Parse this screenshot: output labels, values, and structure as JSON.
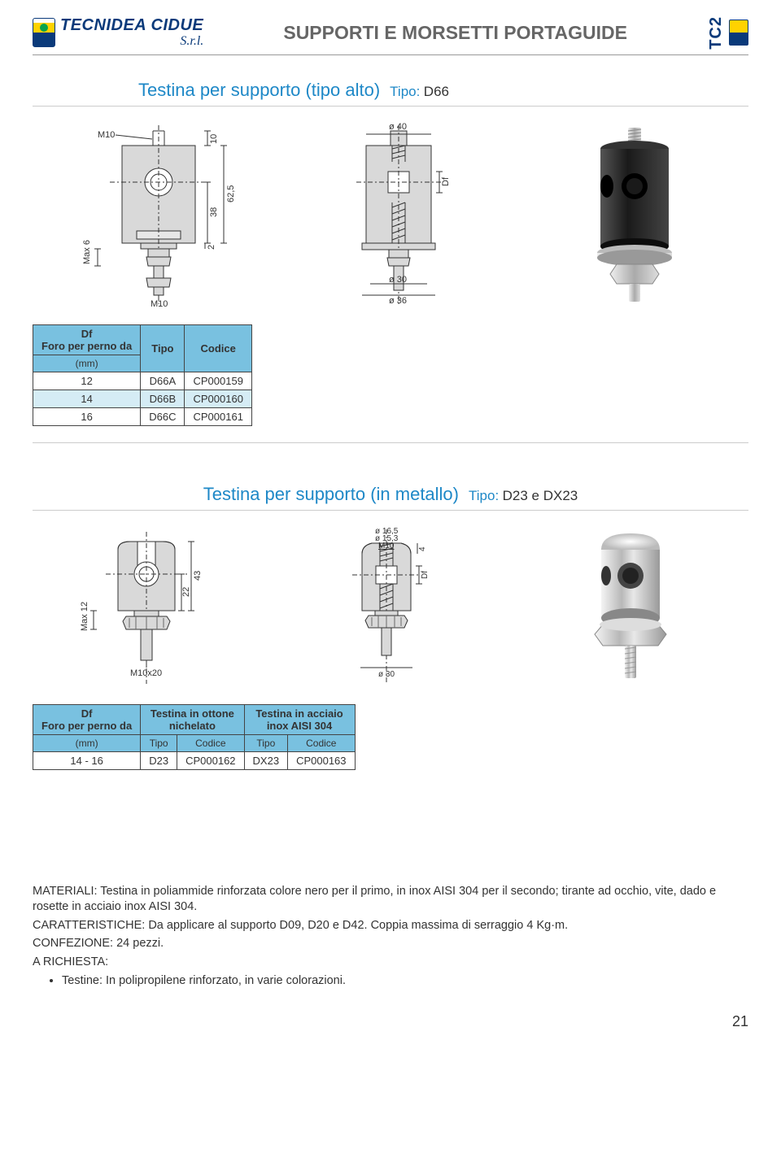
{
  "header": {
    "logo_company": "TECNIDEA CIDUE",
    "logo_suffix": "S.r.l.",
    "title": "SUPPORTI E MORSETTI PORTAGUIDE",
    "badge": "TC2"
  },
  "section1": {
    "title": "Testina per supporto (tipo alto)",
    "type_label": "Tipo:",
    "type_value": "D66",
    "drawing1": {
      "labels": {
        "m10_top": "M10",
        "m10_bottom": "M10",
        "max6": "Max 6",
        "h10": "10",
        "h62_5": "62,5",
        "h38": "38",
        "h2": "2"
      }
    },
    "drawing2": {
      "labels": {
        "d40": "ø 40",
        "d30": "ø 30",
        "d36": "ø 36",
        "df": "Df"
      }
    },
    "table": {
      "header_group": "Df",
      "header_col1": "Foro per perno da",
      "header_col1_unit": "(mm)",
      "header_col2": "Tipo",
      "header_col3": "Codice",
      "rows": [
        {
          "mm": "12",
          "tipo": "D66A",
          "codice": "CP000159"
        },
        {
          "mm": "14",
          "tipo": "D66B",
          "codice": "CP000160"
        },
        {
          "mm": "16",
          "tipo": "D66C",
          "codice": "CP000161"
        }
      ]
    }
  },
  "section2": {
    "title": "Testina per supporto  (in metallo)",
    "type_label": "Tipo:",
    "type_value": "D23 e DX23",
    "drawing1": {
      "labels": {
        "h43": "43",
        "h22": "22",
        "max12": "Max 12",
        "m10x20": "M10x20"
      }
    },
    "drawing2": {
      "labels": {
        "d16_5": "ø 16,5",
        "d15_3": "ø 15,3",
        "m10": "M10",
        "h4": "4",
        "df": "Df",
        "d30": "ø 30"
      }
    },
    "table": {
      "header_group": "Df",
      "header_col1": "Foro per perno da",
      "header_col1_unit": "(mm)",
      "group2_line1": "Testina in ottone",
      "group2_line2": "nichelato",
      "group3_line1": "Testina in acciaio",
      "group3_line2": "inox AISI 304",
      "sub_tipo": "Tipo",
      "sub_codice": "Codice",
      "rows": [
        {
          "mm": "14 - 16",
          "tipo1": "D23",
          "codice1": "CP000162",
          "tipo2": "DX23",
          "codice2": "CP000163"
        }
      ]
    }
  },
  "body": {
    "materiali_label": "MATERIALI:",
    "materiali_text": " Testina in poliammide rinforzata colore nero per il primo, in inox AISI 304 per il secondo; tirante ad occhio, vite, dado e rosette in acciaio inox AISI 304.",
    "caratteristiche_label": "CARATTERISTICHE:",
    "caratteristiche_text": " Da applicare al supporto D09, D20 e D42. Coppia massima di serraggio 4 Kg·m.",
    "confezione_label": "CONFEZIONE:",
    "confezione_text": " 24 pezzi.",
    "richiesta_label": "A RICHIESTA:",
    "richiesta_bullet": "Testine: In polipropilene rinforzato, in varie colorazioni."
  },
  "page_number": "21",
  "colors": {
    "brand_blue": "#0a3a7a",
    "accent_blue": "#1e88c7",
    "table_header": "#79c1e0",
    "table_alt": "#d5ecf5",
    "gray_title": "#666666",
    "drawing_fill": "#d9d9d9",
    "drawing_stroke": "#333333"
  }
}
